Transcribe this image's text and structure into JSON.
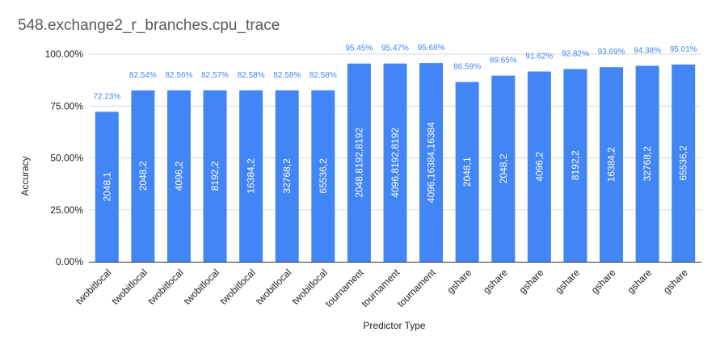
{
  "chart_data": {
    "type": "bar",
    "title": "548.exchange2_r_branches.cpu_trace",
    "xlabel": "Predictor Type",
    "ylabel": "Accuracy",
    "ylim": [
      0,
      1
    ],
    "y_ticks": [
      "0.00%",
      "25.00%",
      "50.00%",
      "75.00%",
      "100.00%"
    ],
    "grid": true,
    "bar_color": "#4285f4",
    "value_label_color": "#4285f4",
    "inner_label_color": "#ffffff",
    "categories": [
      "twobitlocal",
      "twobitlocal",
      "twobitlocal",
      "twobitlocal",
      "twobitlocal",
      "twobitlocal",
      "twobitlocal",
      "tournament",
      "tournament",
      "tournament",
      "gshare",
      "gshare",
      "gshare",
      "gshare",
      "gshare",
      "gshare",
      "gshare"
    ],
    "values": [
      0.7223,
      0.8254,
      0.8256,
      0.8257,
      0.8258,
      0.8258,
      0.8258,
      0.9545,
      0.9547,
      0.9568,
      0.8659,
      0.8965,
      0.9162,
      0.9282,
      0.9369,
      0.9438,
      0.9501
    ],
    "value_labels": [
      "72.23%",
      "82.54%",
      "82.56%",
      "82.57%",
      "82.58%",
      "82.58%",
      "82.58%",
      "95.45%",
      "95.47%",
      "95.68%",
      "86.59%",
      "89.65%",
      "91.62%",
      "92.82%",
      "93.69%",
      "94.38%",
      "95.01%"
    ],
    "bar_labels": [
      "2048,1",
      "2048,2",
      "4096,2",
      "8192,2",
      "16384,2",
      "32768,2",
      "65536,2",
      "2048,8192,8192",
      "4096,8192,8192",
      "4096,16384,16384",
      "2048,1",
      "2048,2",
      "4096,2",
      "8192,2",
      "16384,2",
      "32768,2",
      "65536,2"
    ]
  }
}
